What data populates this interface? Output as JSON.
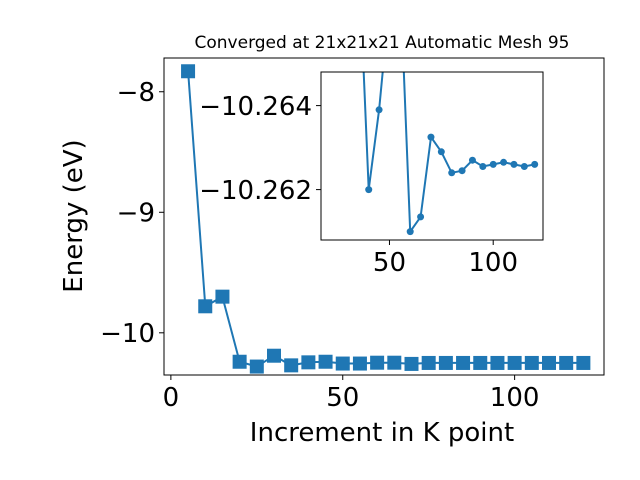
{
  "chart_data": [
    {
      "type": "line",
      "title": "Converged at 21x21x21 Automatic Mesh 95",
      "xlabel": "Increment in K point",
      "ylabel": "Energy (eV)",
      "xlim": [
        -2,
        126
      ],
      "ylim": [
        -10.35,
        -7.72
      ],
      "xticks": [
        0,
        50,
        100
      ],
      "yticks": [
        -8,
        -9,
        -10
      ],
      "xtick_labels": [
        "0",
        "50",
        "100"
      ],
      "ytick_labels": [
        "−8",
        "−9",
        "−10"
      ],
      "marker": "square",
      "color": "#1f77b4",
      "grid": false,
      "series": [
        {
          "x": [
            5,
            10,
            15,
            20,
            25,
            30,
            35,
            40,
            45,
            50,
            55,
            60,
            65,
            70,
            75,
            80,
            85,
            90,
            95,
            100,
            105,
            110,
            115,
            120
          ],
          "y": [
            -7.83,
            -9.78,
            -9.7,
            -10.24,
            -10.28,
            -10.19,
            -10.27,
            -10.245,
            -10.24,
            -10.255,
            -10.255,
            -10.248,
            -10.248,
            -10.258,
            -10.25,
            -10.25,
            -10.25,
            -10.25,
            -10.25,
            -10.25,
            -10.25,
            -10.25,
            -10.25,
            -10.25
          ]
        }
      ]
    },
    {
      "type": "line",
      "title": "",
      "xlabel": "",
      "ylabel": "",
      "xlim": [
        17,
        124
      ],
      "ylim": [
        -10.2608,
        -10.2648
      ],
      "xticks": [
        50,
        100
      ],
      "yticks": [
        -10.264,
        -10.262
      ],
      "xtick_labels": [
        "50",
        "100"
      ],
      "ytick_labels": [
        "−10.264",
        "−10.262"
      ],
      "marker": "circle",
      "color": "#1f77b4",
      "grid": false,
      "series": [
        {
          "x": [
            35,
            40,
            45,
            50,
            55,
            60,
            65,
            70,
            75,
            80,
            85,
            90,
            95,
            100,
            105,
            110,
            115,
            120
          ],
          "y": [
            -10.2678,
            -10.262,
            -10.2639,
            -10.2665,
            -10.2672,
            -10.261,
            -10.26135,
            -10.26325,
            -10.2629,
            -10.2624,
            -10.26245,
            -10.2627,
            -10.26255,
            -10.2626,
            -10.26265,
            -10.2626,
            -10.26255,
            -10.2626
          ]
        }
      ]
    }
  ]
}
